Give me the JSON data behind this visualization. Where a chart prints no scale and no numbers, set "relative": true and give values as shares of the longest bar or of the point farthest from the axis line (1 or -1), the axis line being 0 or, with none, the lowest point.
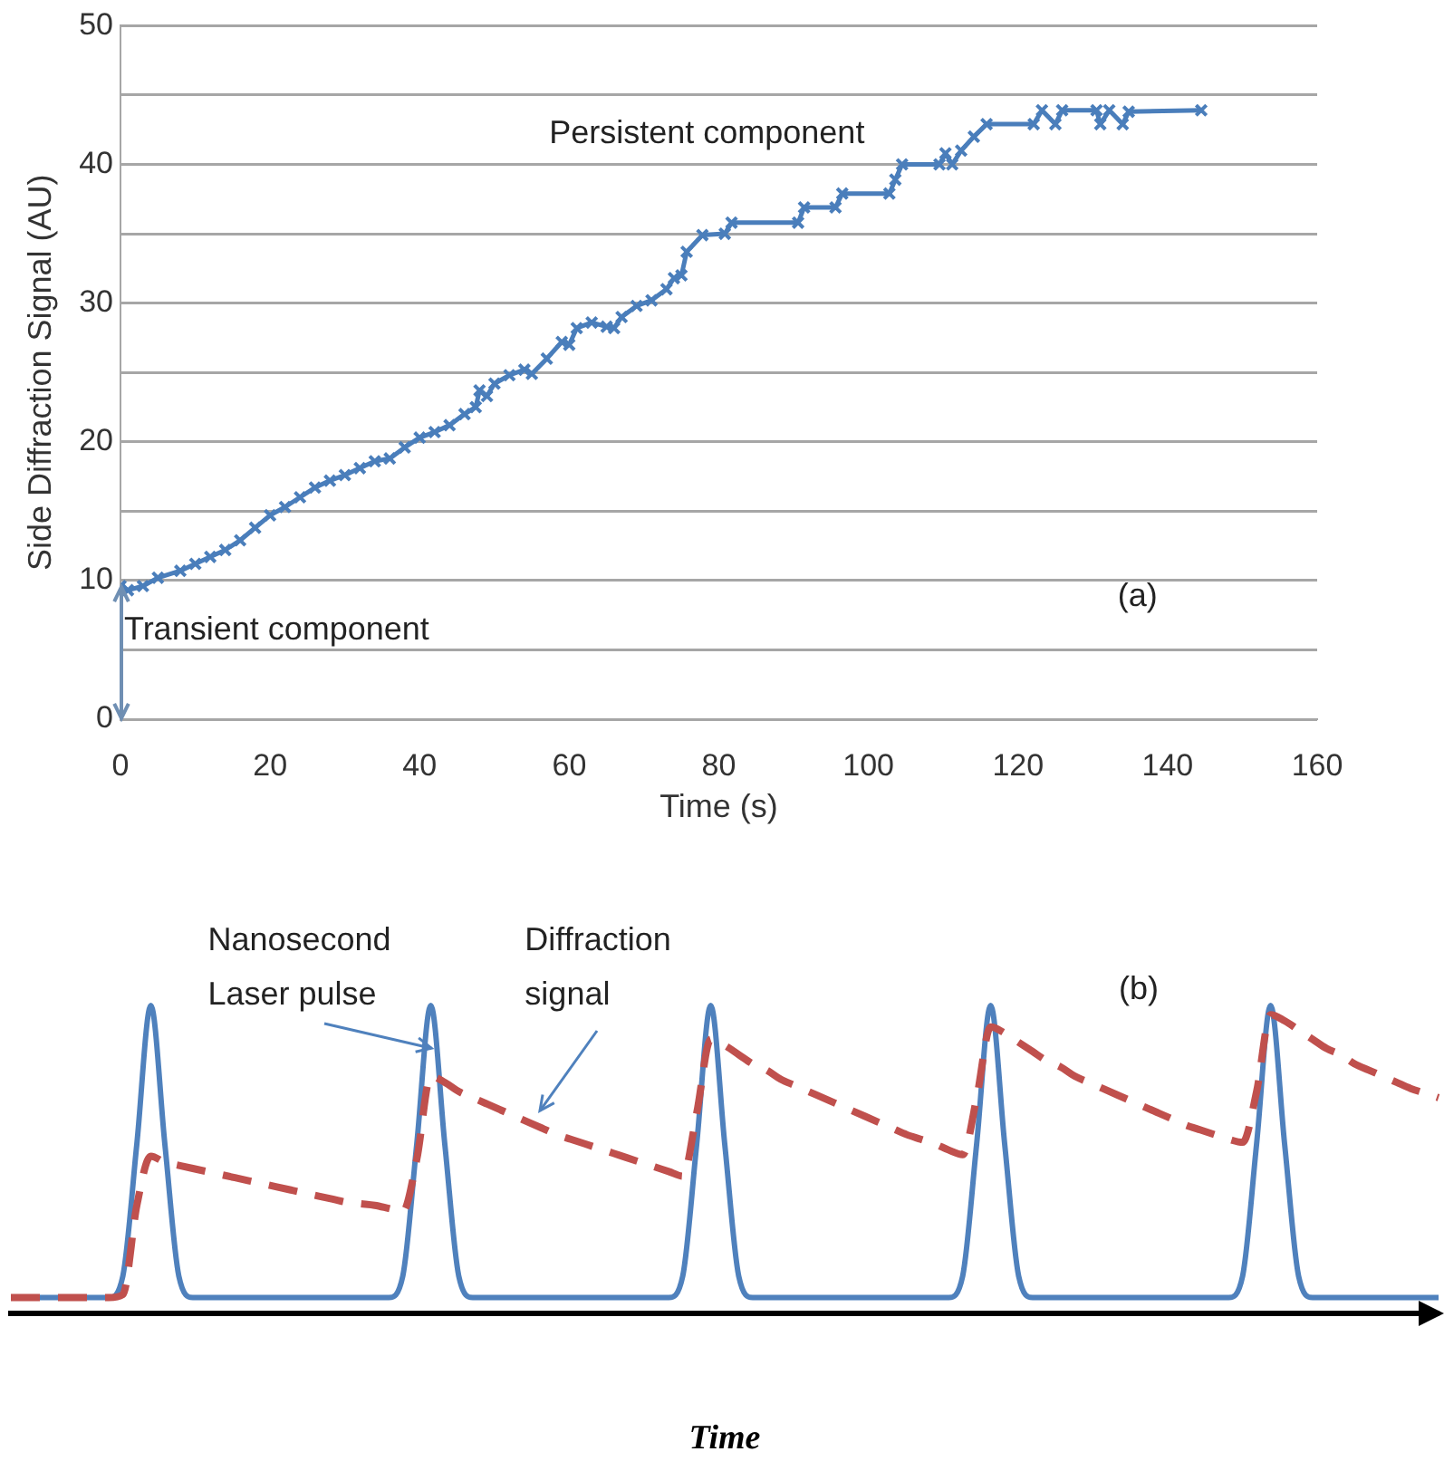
{
  "chart_data": [
    {
      "type": "line",
      "xlabel": "Time (s)",
      "ylabel": "Side Diffraction Signal (AU)",
      "x": [
        0,
        1,
        3,
        5,
        8,
        10,
        12,
        14,
        16,
        18,
        20,
        22,
        24,
        26,
        28,
        30,
        32,
        34,
        36,
        38,
        40,
        42,
        44,
        46,
        47.5,
        48,
        49,
        50,
        52,
        54,
        55,
        57,
        59,
        60,
        61,
        63,
        65,
        66,
        67,
        69,
        71,
        73,
        74,
        75,
        75.7,
        77.8,
        80.8,
        81.7,
        90.6,
        91.4,
        95.6,
        96.5,
        102.8,
        103.6,
        104.5,
        109.5,
        110.3,
        111.2,
        112.4,
        114.1,
        115.8,
        122.1,
        123.2,
        125,
        125.9,
        130.5,
        131,
        132.2,
        134,
        134.8,
        144.5
      ],
      "series": [
        {
          "color": "#4a7ebb",
          "values": [
            9.6,
            9.3,
            9.6,
            10.2,
            10.7,
            11.2,
            11.7,
            12.2,
            12.9,
            13.8,
            14.7,
            15.3,
            16,
            16.7,
            17.2,
            17.6,
            18.1,
            18.6,
            18.8,
            19.6,
            20.3,
            20.7,
            21.2,
            22,
            22.5,
            23.7,
            23.3,
            24.2,
            24.8,
            25.2,
            24.9,
            26,
            27.2,
            27,
            28.2,
            28.6,
            28.3,
            28.2,
            29,
            29.8,
            30.2,
            31,
            31.8,
            32,
            33.7,
            34.9,
            35,
            35.8,
            35.8,
            36.9,
            36.9,
            37.9,
            37.9,
            38.9,
            40,
            40,
            40.8,
            40,
            41,
            42,
            42.9,
            42.9,
            43.9,
            42.9,
            43.9,
            43.9,
            42.9,
            43.9,
            42.9,
            43.8,
            43.9
          ]
        }
      ],
      "xlim": [
        0,
        160
      ],
      "xticks": [
        0,
        20,
        40,
        60,
        80,
        100,
        120,
        140,
        160
      ],
      "ylim": [
        0,
        50
      ],
      "yticks": [
        0,
        {
          "value": 5,
          "label": null
        },
        10,
        {
          "value": 15,
          "label": null
        },
        20,
        {
          "value": 25,
          "label": null
        },
        30,
        {
          "value": 35,
          "label": null
        },
        40,
        {
          "value": 45,
          "label": null
        },
        50
      ],
      "grid": "y",
      "legend": false,
      "marker": "cross",
      "annotations": [
        "Persistent component",
        "Transient component",
        "(a)"
      ]
    },
    {
      "type": "line",
      "relative": true,
      "xlabel": "Time",
      "legend": false,
      "grid": false,
      "marker": "none",
      "categories": [
        null,
        null,
        null,
        null,
        null,
        null,
        null,
        null,
        null,
        null,
        null,
        null,
        null,
        null,
        null,
        null,
        null,
        null,
        null,
        null,
        null,
        null,
        null,
        null,
        null,
        null,
        null,
        null,
        null,
        null,
        null,
        null,
        null,
        null,
        null,
        null,
        null,
        null,
        null,
        null,
        null,
        null,
        null,
        null,
        null,
        null,
        null,
        null,
        null,
        null,
        null,
        null,
        null,
        null,
        null,
        null,
        null,
        null,
        null,
        null,
        null,
        null,
        null,
        null,
        null,
        null,
        null,
        null,
        null,
        null,
        null,
        null,
        null,
        null,
        null,
        null,
        null,
        null,
        null,
        null,
        null,
        null,
        null,
        null,
        null,
        null,
        null,
        null,
        null,
        null,
        null,
        null,
        null,
        null,
        null,
        null,
        null,
        null,
        null,
        null,
        null,
        null,
        null
      ],
      "series": [
        {
          "color": "#4f81bd",
          "line_style": "solid",
          "values": [
            0.05,
            0.05,
            0.05,
            0.05,
            0.05,
            0.05,
            0.05,
            0.05,
            0.12,
            0.55,
            1,
            0.55,
            0.12,
            0.05,
            0.05,
            0.05,
            0.05,
            0.05,
            0.05,
            0.05,
            0.05,
            0.05,
            0.05,
            0.05,
            0.05,
            0.05,
            0.05,
            0.05,
            0.12,
            0.55,
            1,
            0.55,
            0.12,
            0.05,
            0.05,
            0.05,
            0.05,
            0.05,
            0.05,
            0.05,
            0.05,
            0.05,
            0.05,
            0.05,
            0.05,
            0.05,
            0.05,
            0.05,
            0.12,
            0.55,
            1,
            0.55,
            0.12,
            0.05,
            0.05,
            0.05,
            0.05,
            0.05,
            0.05,
            0.05,
            0.05,
            0.05,
            0.05,
            0.05,
            0.05,
            0.05,
            0.05,
            0.05,
            0.12,
            0.55,
            1,
            0.55,
            0.12,
            0.05,
            0.05,
            0.05,
            0.05,
            0.05,
            0.05,
            0.05,
            0.05,
            0.05,
            0.05,
            0.05,
            0.05,
            0.05,
            0.05,
            0.05,
            0.12,
            0.55,
            1,
            0.55,
            0.12,
            0.05,
            0.05,
            0.05,
            0.05,
            0.05,
            0.05,
            0.05,
            0.05,
            0.05,
            0.05
          ]
        },
        {
          "color": "#c0504d",
          "line_style": "dashed",
          "values": [
            0.05,
            0.05,
            0.05,
            0.05,
            0.05,
            0.05,
            0.05,
            0.05,
            0.06,
            0.35,
            0.51,
            0.49,
            0.48,
            0.47,
            0.46,
            0.45,
            0.44,
            0.43,
            0.42,
            0.41,
            0.4,
            0.39,
            0.38,
            0.37,
            0.36,
            0.355,
            0.35,
            0.34,
            0.33,
            0.5,
            0.77,
            0.75,
            0.72,
            0.7,
            0.68,
            0.66,
            0.64,
            0.62,
            0.6,
            0.58,
            0.565,
            0.55,
            0.535,
            0.52,
            0.505,
            0.49,
            0.475,
            0.46,
            0.445,
            0.65,
            0.89,
            0.87,
            0.84,
            0.81,
            0.79,
            0.76,
            0.74,
            0.72,
            0.7,
            0.68,
            0.66,
            0.64,
            0.62,
            0.6,
            0.58,
            0.565,
            0.55,
            0.53,
            0.515,
            0.7,
            0.93,
            0.91,
            0.88,
            0.85,
            0.82,
            0.8,
            0.77,
            0.75,
            0.73,
            0.71,
            0.69,
            0.67,
            0.65,
            0.63,
            0.61,
            0.595,
            0.58,
            0.565,
            0.555,
            0.72,
            0.97,
            0.95,
            0.92,
            0.89,
            0.86,
            0.84,
            0.81,
            0.79,
            0.77,
            0.75,
            0.73,
            0.715,
            0.7
          ]
        }
      ],
      "annotations": [
        "Nanosecond Laser pulse",
        "Diffraction signal",
        "(b)"
      ]
    }
  ]
}
